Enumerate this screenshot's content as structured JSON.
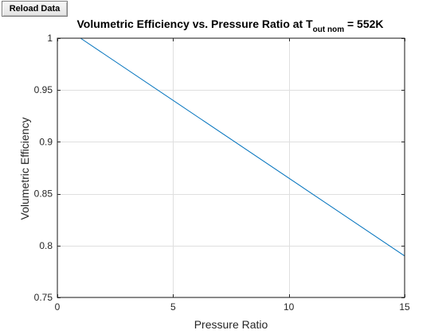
{
  "toolbar": {
    "reload_label": "Reload Data"
  },
  "chart_data": {
    "type": "line",
    "title": {
      "main": "Volumetric Efficiency vs. Pressure Ratio at T",
      "subscript": "out nom",
      "suffix": " = 552K"
    },
    "xlabel": "Pressure Ratio",
    "ylabel": "Volumetric Efficiency",
    "xlim": [
      0,
      15
    ],
    "ylim": [
      0.75,
      1
    ],
    "xticks": [
      0,
      5,
      10,
      15
    ],
    "yticks": [
      0.75,
      0.8,
      0.85,
      0.9,
      0.95,
      1
    ],
    "xtick_labels": [
      "0",
      "5",
      "10",
      "15"
    ],
    "ytick_labels": [
      "0.75",
      "0.8",
      "0.85",
      "0.9",
      "0.95",
      "1"
    ],
    "grid": true,
    "series": [
      {
        "color": "#0072bd",
        "x": [
          1,
          15
        ],
        "y": [
          1.0,
          0.79
        ]
      }
    ]
  }
}
